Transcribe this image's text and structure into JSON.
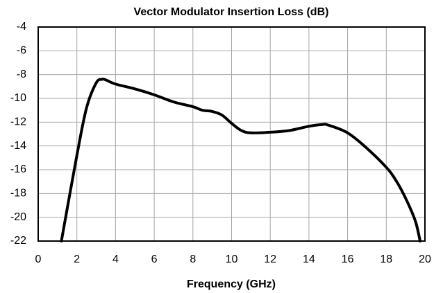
{
  "chart_data": {
    "type": "line",
    "title": "Vector Modulator Insertion Loss (dB)",
    "x_label": "Frequency (GHz)",
    "x": [
      1.2,
      2,
      2.5,
      3,
      3.3,
      3.5,
      4,
      5,
      6,
      7,
      8,
      8.5,
      9,
      9.5,
      10,
      10.5,
      11,
      12,
      13,
      14,
      14.7,
      15,
      16,
      17,
      18,
      18.5,
      19,
      19.5,
      19.75
    ],
    "values": [
      -22,
      -14.8,
      -10.8,
      -8.7,
      -8.4,
      -8.45,
      -8.8,
      -9.2,
      -9.7,
      -10.3,
      -10.7,
      -11.0,
      -11.1,
      -11.4,
      -12.1,
      -12.7,
      -12.9,
      -12.85,
      -12.7,
      -12.35,
      -12.2,
      -12.25,
      -12.9,
      -14.2,
      -15.8,
      -16.9,
      -18.4,
      -20.3,
      -22
    ],
    "color": "#000000",
    "xlim": [
      0,
      20
    ],
    "xticks": [
      0,
      2,
      4,
      6,
      8,
      10,
      12,
      14,
      16,
      18,
      20
    ],
    "ylim": [
      -22,
      -4
    ],
    "yticks": [
      -22,
      -20,
      -18,
      -16,
      -14,
      -12,
      -10,
      -8,
      -6,
      -4
    ],
    "grid": true
  }
}
